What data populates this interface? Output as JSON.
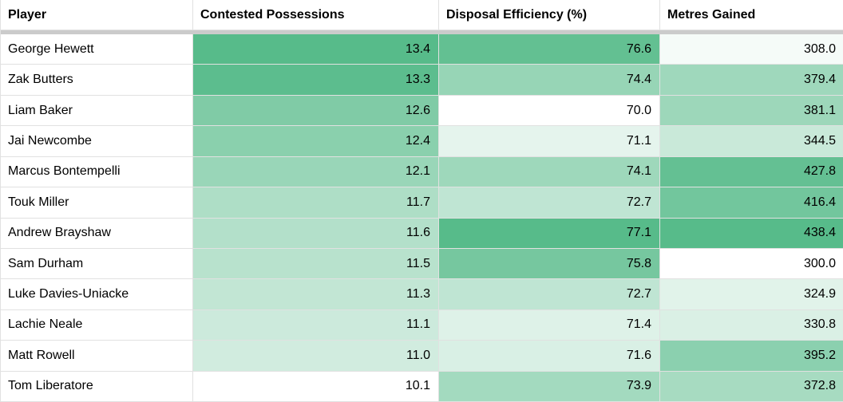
{
  "table": {
    "columns": [
      {
        "key": "player",
        "label": "Player",
        "type": "text"
      },
      {
        "key": "contested_possessions",
        "label": "Contested Possessions",
        "type": "number"
      },
      {
        "key": "disposal_efficiency",
        "label": "Disposal Efficiency (%)",
        "type": "number"
      },
      {
        "key": "metres_gained",
        "label": "Metres Gained",
        "type": "number"
      }
    ],
    "rows": [
      {
        "player": "George Hewett",
        "contested_possessions": "13.4",
        "disposal_efficiency": "76.6",
        "metres_gained": "308.0"
      },
      {
        "player": "Zak Butters",
        "contested_possessions": "13.3",
        "disposal_efficiency": "74.4",
        "metres_gained": "379.4"
      },
      {
        "player": "Liam Baker",
        "contested_possessions": "12.6",
        "disposal_efficiency": "70.0",
        "metres_gained": "381.1"
      },
      {
        "player": "Jai Newcombe",
        "contested_possessions": "12.4",
        "disposal_efficiency": "71.1",
        "metres_gained": "344.5"
      },
      {
        "player": "Marcus Bontempelli",
        "contested_possessions": "12.1",
        "disposal_efficiency": "74.1",
        "metres_gained": "427.8"
      },
      {
        "player": "Touk Miller",
        "contested_possessions": "11.7",
        "disposal_efficiency": "72.7",
        "metres_gained": "416.4"
      },
      {
        "player": "Andrew Brayshaw",
        "contested_possessions": "11.6",
        "disposal_efficiency": "77.1",
        "metres_gained": "438.4"
      },
      {
        "player": "Sam Durham",
        "contested_possessions": "11.5",
        "disposal_efficiency": "75.8",
        "metres_gained": "300.0"
      },
      {
        "player": "Luke Davies-Uniacke",
        "contested_possessions": "11.3",
        "disposal_efficiency": "72.7",
        "metres_gained": "324.9"
      },
      {
        "player": "Lachie Neale",
        "contested_possessions": "11.1",
        "disposal_efficiency": "71.4",
        "metres_gained": "330.8"
      },
      {
        "player": "Matt Rowell",
        "contested_possessions": "11.0",
        "disposal_efficiency": "71.6",
        "metres_gained": "395.2"
      },
      {
        "player": "Tom Liberatore",
        "contested_possessions": "10.1",
        "disposal_efficiency": "73.9",
        "metres_gained": "372.8"
      }
    ],
    "color_scale": {
      "min_color": "#ffffff",
      "max_color": "#57bb8a"
    },
    "gridline_color": "#e1e1e1",
    "frozen_divider_color": "#cbcbcb"
  }
}
